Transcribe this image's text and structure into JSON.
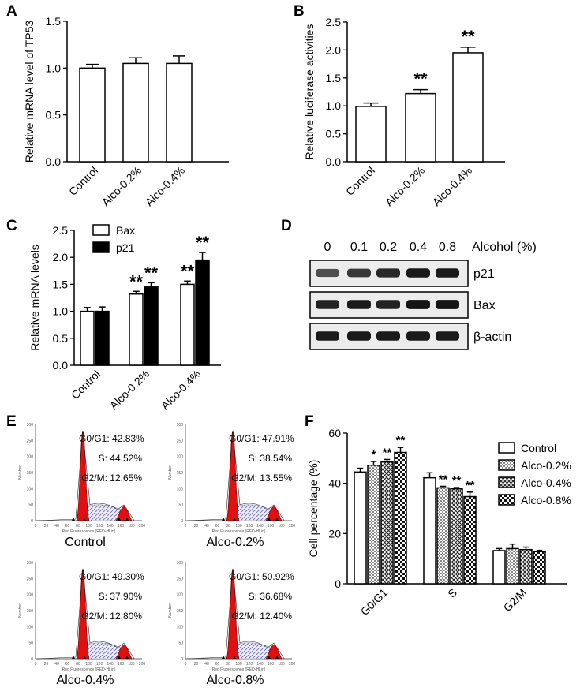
{
  "panels": {
    "A": "A",
    "B": "B",
    "C": "C",
    "D": "D",
    "E": "E",
    "F": "F"
  },
  "chart_data": [
    {
      "id": "A",
      "type": "bar",
      "ylabel": "Relative mRNA level of  TP53",
      "ylim": [
        0,
        1.5
      ],
      "yticks": [
        "0.0",
        "0.5",
        "1.0",
        "1.5"
      ],
      "categories": [
        "Control",
        "Alco-0.2%",
        "Alco-0.4%"
      ],
      "series": [
        {
          "name": "TP53",
          "values": [
            1.0,
            1.05,
            1.05
          ],
          "errors": [
            0.04,
            0.06,
            0.08
          ]
        }
      ],
      "annotations": [
        "",
        "",
        ""
      ]
    },
    {
      "id": "B",
      "type": "bar",
      "ylabel": "Relative luciferase activities",
      "ylim": [
        0,
        2.5
      ],
      "yticks": [
        "0.0",
        "0.5",
        "1.0",
        "1.5",
        "2.0",
        "2.5"
      ],
      "categories": [
        "Control",
        "Alco-0.2%",
        "Alco-0.4%"
      ],
      "series": [
        {
          "name": "luciferase",
          "values": [
            0.99,
            1.22,
            1.95
          ],
          "errors": [
            0.06,
            0.07,
            0.1
          ]
        }
      ],
      "annotations": [
        "",
        "**",
        "**"
      ]
    },
    {
      "id": "C",
      "type": "bar",
      "ylabel": "Relative mRNA levels",
      "ylim": [
        0,
        2.5
      ],
      "yticks": [
        "0.0",
        "0.5",
        "1.0",
        "1.5",
        "2.0",
        "2.5"
      ],
      "categories": [
        "Control",
        "Alco-0.2%",
        "Alco-0.4%"
      ],
      "series": [
        {
          "name": "Bax",
          "values": [
            1.0,
            1.32,
            1.5
          ],
          "errors": [
            0.07,
            0.05,
            0.06
          ],
          "annotations": [
            "",
            "**",
            "**"
          ]
        },
        {
          "name": "p21",
          "values": [
            1.0,
            1.45,
            1.95
          ],
          "errors": [
            0.08,
            0.08,
            0.14
          ],
          "annotations": [
            "",
            "**",
            "**"
          ]
        }
      ],
      "legend": [
        "Bax",
        "p21"
      ]
    },
    {
      "id": "F",
      "type": "bar",
      "ylabel": "Cell percentage (%)",
      "ylim": [
        0,
        60
      ],
      "yticks": [
        "0",
        "20",
        "40",
        "60"
      ],
      "categories": [
        "G0/G1",
        "S",
        "G2/M"
      ],
      "series": [
        {
          "name": "Control",
          "values": [
            44.5,
            42.2,
            13.2
          ],
          "errors": [
            1.5,
            2.0,
            0.8
          ],
          "annotations": [
            "",
            "",
            ""
          ]
        },
        {
          "name": "Alco-0.2%",
          "values": [
            47.2,
            38.2,
            14.0
          ],
          "errors": [
            1.5,
            0.6,
            1.8
          ],
          "annotations": [
            "*",
            "**",
            ""
          ]
        },
        {
          "name": "Alco-0.4%",
          "values": [
            48.5,
            37.8,
            13.6
          ],
          "errors": [
            1.0,
            0.5,
            1.0
          ],
          "annotations": [
            "**",
            "**",
            ""
          ]
        },
        {
          "name": "Alco-0.8%",
          "values": [
            52.3,
            34.7,
            12.8
          ],
          "errors": [
            2.0,
            1.8,
            0.5
          ],
          "annotations": [
            "**",
            "**",
            ""
          ]
        }
      ],
      "legend": [
        "Control",
        "Alco-0.2%",
        "Alco-0.4%",
        "Alco-0.8%"
      ]
    }
  ],
  "western": {
    "header_lanes": [
      "0",
      "0.1",
      "0.2",
      "0.4",
      "0.8"
    ],
    "header_title": "Alcohol (%)",
    "rows": [
      {
        "label": "p21",
        "intensity": [
          0.55,
          0.7,
          0.8,
          0.9,
          0.9
        ]
      },
      {
        "label": "Bax",
        "intensity": [
          0.85,
          0.9,
          0.85,
          0.95,
          0.95
        ]
      },
      {
        "label": "β-actin",
        "intensity": [
          0.9,
          0.9,
          0.9,
          0.9,
          0.9
        ]
      }
    ]
  },
  "flow": [
    {
      "caption": "Control",
      "g0": "G0/G1: 42.83%",
      "s": "S: 44.52%",
      "g2": "G2/M: 12.65%"
    },
    {
      "caption": "Alco-0.2%",
      "g0": "G0/G1: 47.91%",
      "s": "S: 38.54%",
      "g2": "G2/M: 13.55%"
    },
    {
      "caption": "Alco-0.4%",
      "g0": "G0/G1: 49.30%",
      "s": "S: 37.90%",
      "g2": "G2/M: 12.80%"
    },
    {
      "caption": "Alco-0.8%",
      "g0": "G0/G1: 50.92%",
      "s": "S: 36.68%",
      "g2": "G2/M: 12.40%"
    }
  ],
  "flow_axis": {
    "ylabel": "Number",
    "xlabel": "Red Fluorescence (RED-HLin)"
  }
}
